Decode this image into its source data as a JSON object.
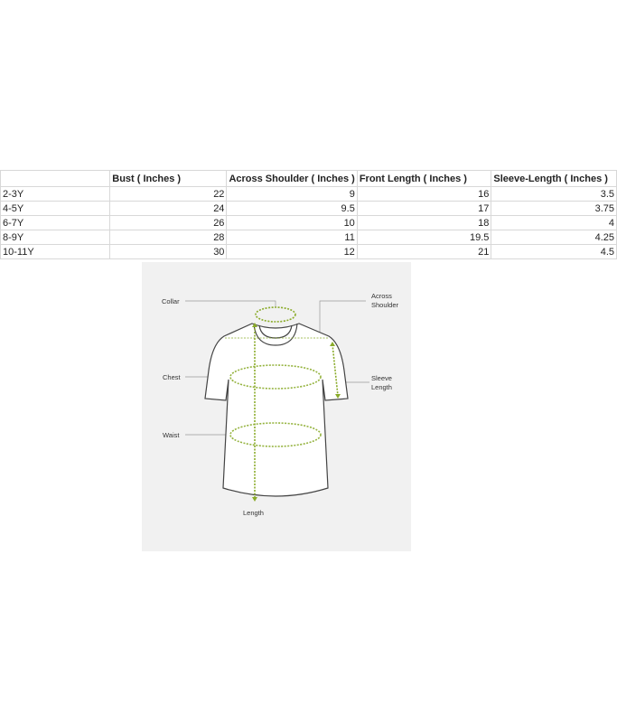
{
  "size_table": {
    "headers": [
      "",
      "Bust ( Inches )",
      "Across Shoulder ( Inches )",
      "Front Length ( Inches )",
      "Sleeve-Length ( Inches )"
    ],
    "rows": [
      [
        "2-3Y",
        "22",
        "9",
        "16",
        "3.5"
      ],
      [
        "4-5Y",
        "24",
        "9.5",
        "17",
        "3.75"
      ],
      [
        "6-7Y",
        "26",
        "10",
        "18",
        "4"
      ],
      [
        "8-9Y",
        "28",
        "11",
        "19.5",
        "4.25"
      ],
      [
        "10-11Y",
        "30",
        "12",
        "21",
        "4.5"
      ]
    ]
  },
  "diagram": {
    "labels": {
      "collar": "Collar",
      "across_1": "Across",
      "across_2": "Shoulder",
      "chest": "Chest",
      "sleeve_1": "Sleeve",
      "sleeve_2": "Length",
      "waist": "Waist",
      "length": "Length"
    },
    "accent_color": "#8aab2a"
  }
}
